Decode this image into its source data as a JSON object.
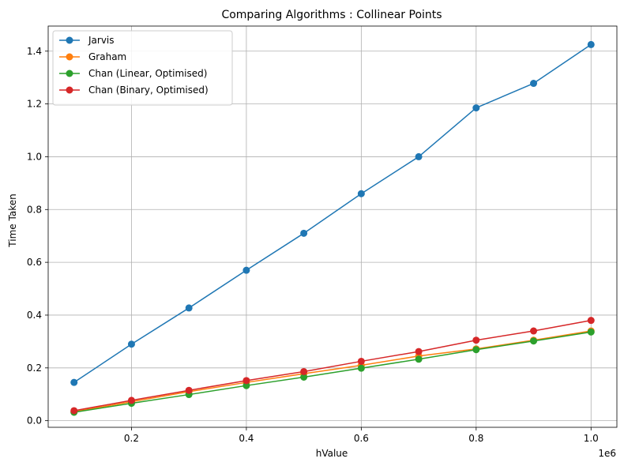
{
  "chart_data": {
    "type": "line",
    "title": "Comparing Algorithms : Collinear Points",
    "xlabel": "hValue",
    "ylabel": "Time Taken",
    "x_offset_label": "1e6",
    "x": [
      100000,
      200000,
      300000,
      400000,
      500000,
      600000,
      700000,
      800000,
      900000,
      1000000
    ],
    "xlim": [
      55000,
      1045000
    ],
    "ylim": [
      -0.025,
      1.495
    ],
    "x_ticks": [
      200000,
      400000,
      600000,
      800000,
      1000000
    ],
    "x_tick_labels": [
      "0.2",
      "0.4",
      "0.6",
      "0.8",
      "1.0"
    ],
    "y_ticks": [
      0.0,
      0.2,
      0.4,
      0.6,
      0.8,
      1.0,
      1.2,
      1.4
    ],
    "y_tick_labels": [
      "0.0",
      "0.2",
      "0.4",
      "0.6",
      "0.8",
      "1.0",
      "1.2",
      "1.4"
    ],
    "grid": true,
    "legend_position": "top-left",
    "series": [
      {
        "name": "Jarvis",
        "color": "#1f77b4",
        "values": [
          0.145,
          0.29,
          0.427,
          0.57,
          0.71,
          0.86,
          1.0,
          1.185,
          1.278,
          1.425
        ]
      },
      {
        "name": "Graham",
        "color": "#ff7f0e",
        "values": [
          0.034,
          0.072,
          0.11,
          0.145,
          0.178,
          0.21,
          0.245,
          0.272,
          0.305,
          0.34
        ]
      },
      {
        "name": "Chan (Linear, Optimised)",
        "color": "#2ca02c",
        "values": [
          0.032,
          0.066,
          0.099,
          0.133,
          0.165,
          0.199,
          0.233,
          0.269,
          0.302,
          0.336
        ]
      },
      {
        "name": "Chan (Binary, Optimised)",
        "color": "#d62728",
        "values": [
          0.038,
          0.077,
          0.115,
          0.152,
          0.186,
          0.225,
          0.262,
          0.305,
          0.34,
          0.38
        ]
      }
    ]
  }
}
